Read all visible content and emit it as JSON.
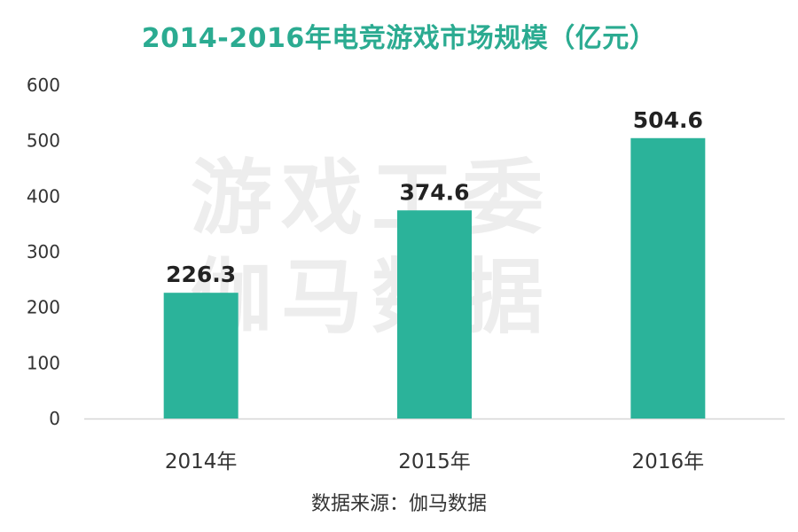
{
  "chart_data": {
    "type": "bar",
    "title": "2014-2016年电竞游戏市场规模（亿元）",
    "categories": [
      "2014年",
      "2015年",
      "2016年"
    ],
    "values": [
      226.3,
      374.6,
      504.6
    ],
    "value_labels": [
      "226.3",
      "374.6",
      "504.6"
    ],
    "ylim": [
      0,
      600
    ],
    "yticks": [
      0,
      100,
      200,
      300,
      400,
      500,
      600
    ],
    "xlabel": "",
    "ylabel": "",
    "grid": false,
    "legend": "none"
  },
  "watermark": {
    "line1": "游戏工委",
    "line2": "伽马数据"
  },
  "source": "数据来源：伽马数据",
  "colors": {
    "bar": "#2bb39a",
    "title": "#2bab91",
    "axis": "#d6d6d6",
    "text": "#333333",
    "value_label": "#222222"
  }
}
